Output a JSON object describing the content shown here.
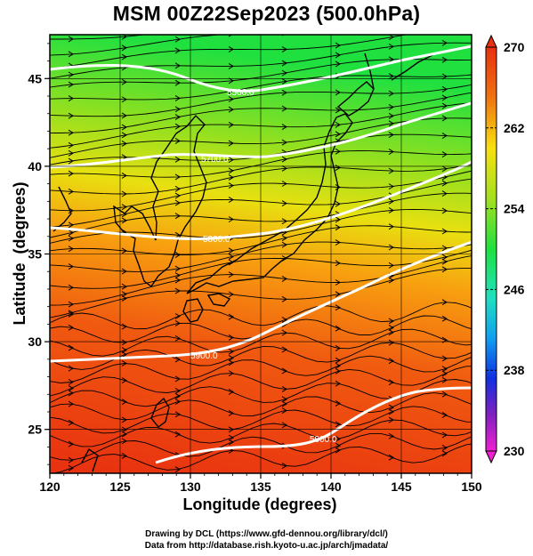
{
  "title": "MSM 00Z22Sep2023 (500.0hPa)",
  "axes": {
    "xlabel": "Longitude (degrees)",
    "ylabel": "Latitude  (degrees)",
    "x_ticks": [
      "120",
      "125",
      "130",
      "135",
      "140",
      "145",
      "150"
    ],
    "y_ticks": [
      "25",
      "30",
      "35",
      "40",
      "45"
    ],
    "xlim": [
      120,
      150
    ],
    "ylim": [
      22.5,
      47.5
    ]
  },
  "colorbar": {
    "labels": [
      "270",
      "262",
      "254",
      "246",
      "238",
      "230"
    ],
    "range": [
      230,
      270
    ],
    "unit_hint": "temperature (K)"
  },
  "contours": {
    "labels": [
      "5500.0",
      "5700.0",
      "5800.0",
      "5900.0",
      "5900.0"
    ],
    "color": "#ffffff"
  },
  "credits": {
    "line1": "Drawing by DCL (https://www.gfd-dennou.org/library/dcl/)",
    "line2": "Data from http://database.rish.kyoto-u.ac.jp/arch/jmadata/"
  },
  "colors": {
    "warm": "#e8401a",
    "mid": "#ffb000",
    "cool": "#30e030",
    "contour": "#ffffff",
    "streamline": "#000000"
  }
}
